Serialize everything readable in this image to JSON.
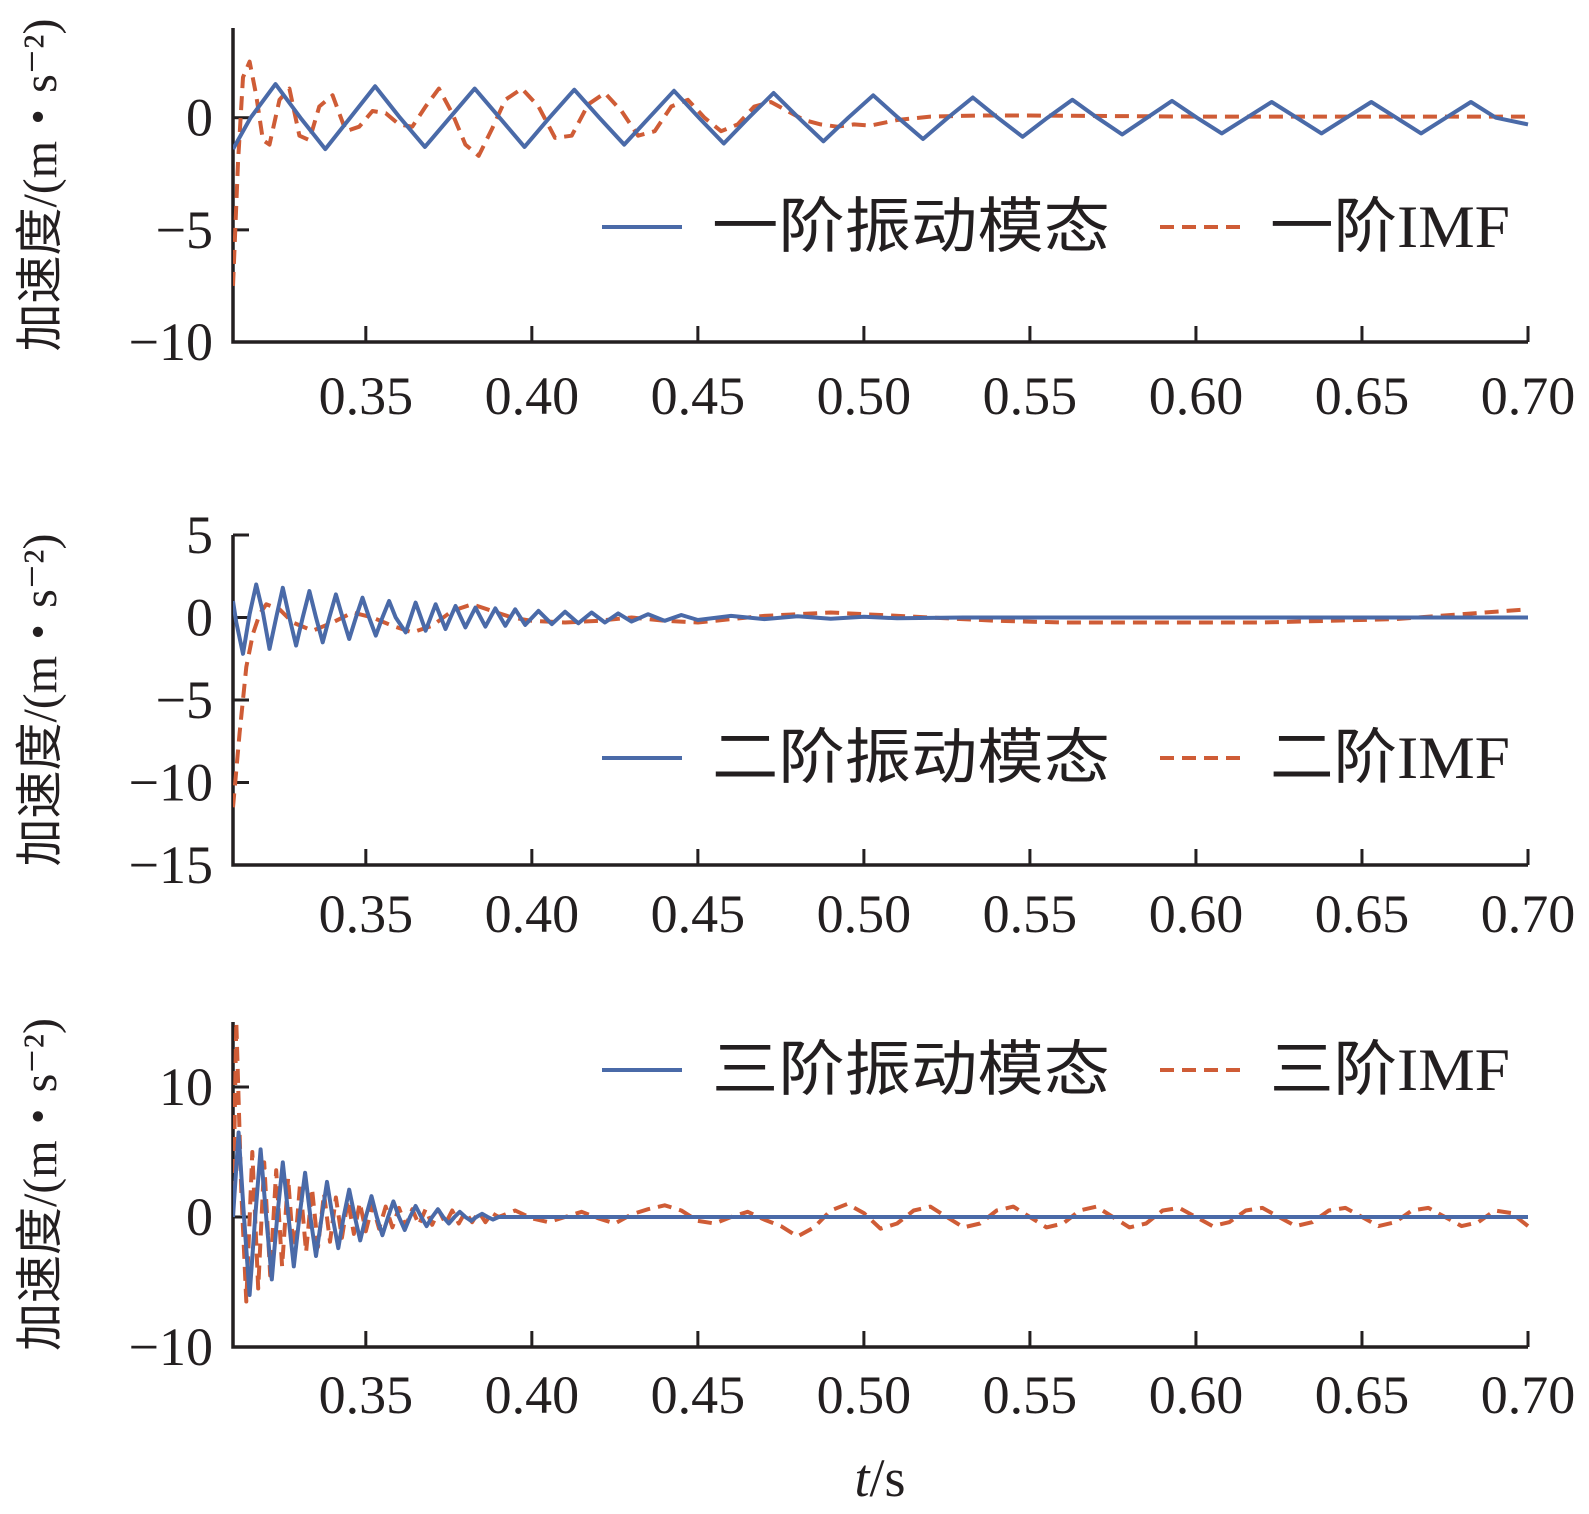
{
  "colors": {
    "mode": "#4a6aa8",
    "imf": "#cf5c36",
    "axis": "#231f20"
  },
  "xlabel": {
    "italic": "t",
    "rest": "/s"
  },
  "chart_data": [
    {
      "type": "line",
      "ylabel": "加速度/(m・s⁻²)",
      "xlim": [
        0.31,
        0.7
      ],
      "ylim": [
        -10,
        4
      ],
      "xticks": [
        0.35,
        0.4,
        0.45,
        0.5,
        0.55,
        0.6,
        0.65,
        0.7
      ],
      "xtick_labels": [
        "0.35",
        "0.40",
        "0.45",
        "0.50",
        "0.55",
        "0.60",
        "0.65",
        "0.70"
      ],
      "yticks": [
        0,
        -5,
        -10
      ],
      "ytick_labels": [
        "0",
        "−5",
        "−10"
      ],
      "legend": "right",
      "series": [
        {
          "name": "一阶振动模态",
          "style": "solid",
          "color": "#4a6aa8",
          "x": [
            0.31,
            0.3153,
            0.3228,
            0.3303,
            0.3378,
            0.3453,
            0.3528,
            0.3603,
            0.3678,
            0.3753,
            0.3828,
            0.3903,
            0.3978,
            0.4053,
            0.4128,
            0.4203,
            0.4278,
            0.4353,
            0.4428,
            0.4503,
            0.4578,
            0.4653,
            0.4728,
            0.4803,
            0.4878,
            0.4953,
            0.5028,
            0.5103,
            0.5178,
            0.5253,
            0.5328,
            0.5403,
            0.5478,
            0.5553,
            0.5628,
            0.5703,
            0.5778,
            0.5853,
            0.5928,
            0.6003,
            0.6078,
            0.6153,
            0.6228,
            0.6303,
            0.6378,
            0.6453,
            0.6528,
            0.6603,
            0.6678,
            0.6753,
            0.6828,
            0.6903,
            0.7
          ],
          "y": [
            -1.4,
            0.0,
            1.5,
            0.0,
            -1.4,
            0.0,
            1.4,
            0.0,
            -1.3,
            0.0,
            1.3,
            0.0,
            -1.3,
            0.0,
            1.25,
            0.0,
            -1.2,
            0.0,
            1.2,
            0.0,
            -1.15,
            0.0,
            1.1,
            0.0,
            -1.05,
            0.0,
            1.0,
            0.0,
            -0.95,
            0.0,
            0.9,
            0.0,
            -0.85,
            0.0,
            0.8,
            0.0,
            -0.75,
            0.0,
            0.75,
            0.0,
            -0.7,
            0.0,
            0.7,
            0.0,
            -0.7,
            0.0,
            0.7,
            0.0,
            -0.7,
            0.0,
            0.7,
            0.0,
            -0.3
          ]
        },
        {
          "name": "一阶IMF",
          "style": "dashed",
          "color": "#cf5c36",
          "x": [
            0.31,
            0.3115,
            0.313,
            0.315,
            0.317,
            0.319,
            0.321,
            0.324,
            0.327,
            0.33,
            0.333,
            0.336,
            0.34,
            0.344,
            0.348,
            0.352,
            0.356,
            0.36,
            0.364,
            0.368,
            0.372,
            0.376,
            0.38,
            0.384,
            0.388,
            0.392,
            0.397,
            0.402,
            0.407,
            0.412,
            0.417,
            0.422,
            0.427,
            0.432,
            0.437,
            0.442,
            0.447,
            0.452,
            0.457,
            0.462,
            0.467,
            0.472,
            0.477,
            0.482,
            0.487,
            0.492,
            0.497,
            0.502,
            0.51,
            0.52,
            0.535,
            0.55,
            0.6,
            0.65,
            0.7
          ],
          "y": [
            -7.5,
            -2.0,
            1.8,
            2.5,
            1.0,
            -1.0,
            -1.2,
            0.8,
            1.3,
            -0.8,
            -1.0,
            0.5,
            1.0,
            -0.6,
            -0.4,
            0.3,
            0.2,
            -0.3,
            -0.4,
            0.5,
            1.3,
            0.2,
            -1.2,
            -1.7,
            -0.5,
            0.8,
            1.3,
            0.5,
            -0.9,
            -0.8,
            0.6,
            1.1,
            0.3,
            -0.8,
            -0.6,
            0.5,
            0.8,
            0.0,
            -0.6,
            -0.3,
            0.5,
            0.7,
            0.3,
            -0.1,
            -0.3,
            -0.4,
            -0.3,
            -0.35,
            -0.1,
            0.05,
            0.1,
            0.1,
            0.05,
            0.05,
            0.05
          ]
        }
      ]
    },
    {
      "type": "line",
      "ylabel": "加速度/(m・s⁻²)",
      "xlim": [
        0.31,
        0.7
      ],
      "ylim": [
        -15,
        5
      ],
      "xticks": [
        0.35,
        0.4,
        0.45,
        0.5,
        0.55,
        0.6,
        0.65,
        0.7
      ],
      "xtick_labels": [
        "0.35",
        "0.40",
        "0.45",
        "0.50",
        "0.55",
        "0.60",
        "0.65",
        "0.70"
      ],
      "yticks": [
        5,
        0,
        -5,
        -10,
        -15
      ],
      "ytick_labels": [
        "5",
        "0",
        "−5",
        "−10",
        "−15"
      ],
      "legend": "right",
      "series": [
        {
          "name": "二阶振动模态",
          "style": "solid",
          "color": "#4a6aa8",
          "x": [
            0.31,
            0.311,
            0.313,
            0.315,
            0.317,
            0.319,
            0.321,
            0.323,
            0.325,
            0.327,
            0.329,
            0.331,
            0.333,
            0.335,
            0.337,
            0.339,
            0.341,
            0.343,
            0.345,
            0.347,
            0.349,
            0.351,
            0.353,
            0.355,
            0.357,
            0.359,
            0.362,
            0.365,
            0.368,
            0.371,
            0.374,
            0.377,
            0.38,
            0.383,
            0.386,
            0.389,
            0.392,
            0.395,
            0.398,
            0.402,
            0.406,
            0.41,
            0.414,
            0.418,
            0.422,
            0.426,
            0.43,
            0.435,
            0.44,
            0.445,
            0.45,
            0.46,
            0.47,
            0.48,
            0.49,
            0.5,
            0.51,
            0.53,
            0.55,
            0.6,
            0.65,
            0.7
          ],
          "y": [
            1.0,
            -0.3,
            -2.2,
            0.2,
            2.0,
            0.3,
            -1.9,
            0.0,
            1.8,
            0.0,
            -1.7,
            0.0,
            1.6,
            0.0,
            -1.5,
            0.0,
            1.4,
            0.0,
            -1.3,
            0.0,
            1.2,
            0.0,
            -1.1,
            0.0,
            1.0,
            0.0,
            -0.9,
            0.9,
            -0.8,
            0.8,
            -0.7,
            0.7,
            -0.6,
            0.6,
            -0.55,
            0.55,
            -0.5,
            0.5,
            -0.45,
            0.4,
            -0.4,
            0.35,
            -0.35,
            0.3,
            -0.3,
            0.25,
            -0.25,
            0.2,
            -0.2,
            0.15,
            -0.15,
            0.1,
            -0.1,
            0.08,
            -0.08,
            0.05,
            -0.05,
            0.0,
            0.0,
            0.0,
            0.0,
            0.0
          ]
        },
        {
          "name": "二阶IMF",
          "style": "dashed",
          "color": "#cf5c36",
          "x": [
            0.31,
            0.312,
            0.314,
            0.316,
            0.318,
            0.32,
            0.324,
            0.328,
            0.334,
            0.34,
            0.346,
            0.352,
            0.358,
            0.364,
            0.37,
            0.376,
            0.382,
            0.388,
            0.394,
            0.4,
            0.41,
            0.42,
            0.43,
            0.44,
            0.45,
            0.46,
            0.47,
            0.48,
            0.49,
            0.5,
            0.52,
            0.54,
            0.56,
            0.58,
            0.6,
            0.62,
            0.64,
            0.66,
            0.68,
            0.7
          ],
          "y": [
            -11.5,
            -7.0,
            -3.0,
            -1.0,
            0.2,
            0.8,
            0.5,
            -0.3,
            -0.8,
            -0.3,
            0.3,
            0.0,
            -0.5,
            -0.9,
            -0.5,
            0.4,
            0.8,
            0.4,
            0.0,
            -0.2,
            -0.3,
            -0.2,
            0.0,
            -0.2,
            -0.3,
            -0.1,
            0.1,
            0.2,
            0.3,
            0.2,
            0.0,
            -0.2,
            -0.3,
            -0.3,
            -0.3,
            -0.3,
            -0.2,
            -0.1,
            0.2,
            0.5
          ]
        }
      ]
    },
    {
      "type": "line",
      "ylabel": "加速度/(m・s⁻²)",
      "xlim": [
        0.31,
        0.7
      ],
      "ylim": [
        -10,
        15
      ],
      "xticks": [
        0.35,
        0.4,
        0.45,
        0.5,
        0.55,
        0.6,
        0.65,
        0.7
      ],
      "xtick_labels": [
        "0.35",
        "0.40",
        "0.45",
        "0.50",
        "0.55",
        "0.60",
        "0.65",
        "0.70"
      ],
      "yticks": [
        10,
        0,
        -10
      ],
      "ytick_labels": [
        "10",
        "0",
        "−10"
      ],
      "legend": "top-right",
      "series": [
        {
          "name": "三阶振动模态",
          "style": "solid",
          "color": "#4a6aa8",
          "x": [
            0.31,
            0.3117,
            0.3133,
            0.315,
            0.3167,
            0.3183,
            0.32,
            0.3217,
            0.3233,
            0.325,
            0.3267,
            0.3283,
            0.33,
            0.3317,
            0.3333,
            0.335,
            0.3367,
            0.3383,
            0.34,
            0.3417,
            0.3433,
            0.345,
            0.3467,
            0.3483,
            0.35,
            0.3517,
            0.3533,
            0.355,
            0.3567,
            0.3583,
            0.36,
            0.3617,
            0.3633,
            0.365,
            0.3667,
            0.3683,
            0.37,
            0.3717,
            0.3733,
            0.375,
            0.3767,
            0.3783,
            0.38,
            0.3817,
            0.3833,
            0.385,
            0.3867,
            0.3883,
            0.39,
            0.395,
            0.4,
            0.45,
            0.5,
            0.55,
            0.6,
            0.65,
            0.7
          ],
          "y": [
            0.0,
            6.5,
            0.0,
            -6.0,
            0.0,
            5.2,
            0.0,
            -4.8,
            0.0,
            4.2,
            0.0,
            -3.8,
            0.0,
            3.4,
            0.0,
            -3.0,
            0.0,
            2.7,
            0.0,
            -2.4,
            0.0,
            2.1,
            0.0,
            -1.8,
            0.0,
            1.6,
            0.0,
            -1.4,
            0.0,
            1.2,
            0.0,
            -1.0,
            0.0,
            0.85,
            0.0,
            -0.7,
            0.0,
            0.6,
            0.0,
            -0.5,
            0.0,
            0.4,
            0.0,
            -0.3,
            0.0,
            0.25,
            0.0,
            -0.2,
            0.0,
            0.0,
            0.0,
            0.0,
            0.0,
            0.0,
            0.0,
            0.0,
            0.0
          ]
        },
        {
          "name": "三阶IMF",
          "style": "dashed",
          "color": "#cf5c36",
          "x": [
            0.31,
            0.311,
            0.3125,
            0.314,
            0.3158,
            0.3176,
            0.3194,
            0.3212,
            0.323,
            0.3248,
            0.3266,
            0.3284,
            0.3302,
            0.332,
            0.3338,
            0.3356,
            0.3374,
            0.3392,
            0.341,
            0.3428,
            0.3446,
            0.3464,
            0.3482,
            0.35,
            0.352,
            0.354,
            0.356,
            0.358,
            0.36,
            0.362,
            0.364,
            0.366,
            0.368,
            0.37,
            0.372,
            0.374,
            0.376,
            0.378,
            0.38,
            0.382,
            0.384,
            0.386,
            0.388,
            0.39,
            0.395,
            0.4,
            0.405,
            0.41,
            0.415,
            0.42,
            0.425,
            0.43,
            0.435,
            0.44,
            0.445,
            0.45,
            0.455,
            0.46,
            0.465,
            0.47,
            0.475,
            0.48,
            0.485,
            0.49,
            0.495,
            0.5,
            0.505,
            0.51,
            0.515,
            0.52,
            0.525,
            0.53,
            0.535,
            0.54,
            0.545,
            0.55,
            0.555,
            0.56,
            0.565,
            0.57,
            0.575,
            0.58,
            0.585,
            0.59,
            0.595,
            0.6,
            0.605,
            0.61,
            0.615,
            0.62,
            0.625,
            0.63,
            0.635,
            0.64,
            0.645,
            0.65,
            0.655,
            0.66,
            0.665,
            0.67,
            0.675,
            0.68,
            0.685,
            0.69,
            0.695,
            0.7
          ],
          "y": [
            0.0,
            15.0,
            2.0,
            -6.5,
            5.0,
            -5.5,
            4.2,
            -4.5,
            3.6,
            -3.8,
            3.0,
            -3.2,
            2.6,
            -2.7,
            2.2,
            -2.3,
            1.8,
            -1.9,
            1.5,
            -1.6,
            1.3,
            -1.3,
            1.1,
            -1.1,
            0.9,
            -0.9,
            0.8,
            -0.8,
            0.7,
            -0.7,
            0.6,
            -0.6,
            0.6,
            -0.6,
            0.5,
            -0.5,
            0.5,
            -0.5,
            0.4,
            -0.4,
            0.4,
            -0.4,
            0.3,
            0.0,
            0.5,
            -0.1,
            -0.4,
            0.0,
            0.4,
            -0.1,
            -0.5,
            0.2,
            0.6,
            0.9,
            0.5,
            -0.3,
            -0.5,
            0.0,
            0.4,
            -0.2,
            -0.7,
            -1.5,
            -0.8,
            0.5,
            1.0,
            0.3,
            -0.9,
            -0.5,
            0.5,
            0.8,
            0.0,
            -0.8,
            -0.5,
            0.5,
            0.8,
            0.0,
            -0.8,
            -0.5,
            0.5,
            0.8,
            0.0,
            -0.8,
            -0.5,
            0.5,
            0.7,
            0.0,
            -0.7,
            -0.4,
            0.5,
            0.7,
            0.0,
            -0.7,
            -0.4,
            0.5,
            0.7,
            0.0,
            -0.7,
            -0.4,
            0.5,
            0.7,
            0.0,
            -0.7,
            -0.4,
            0.5,
            0.3,
            -0.7
          ]
        }
      ]
    }
  ]
}
